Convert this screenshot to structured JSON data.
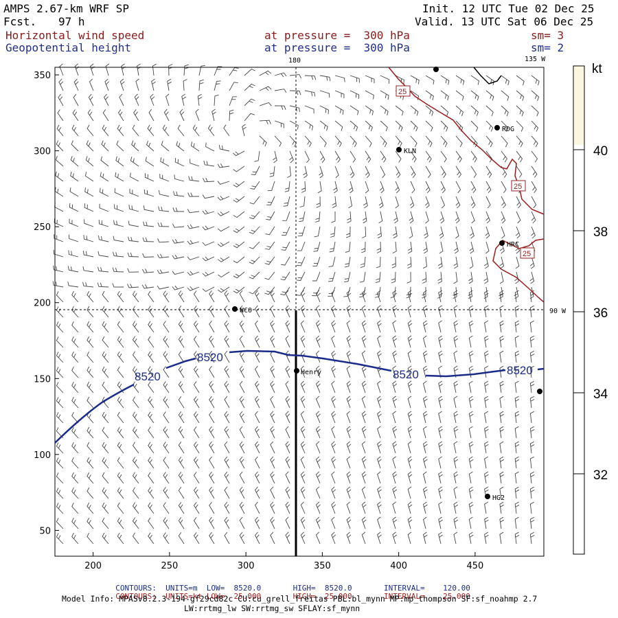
{
  "header": {
    "model": "AMPS 2.67-km WRF SP",
    "fcst_label": "Fcst.",
    "fcst_value": "97 h",
    "init": "Init. 12 UTC Tue 02 Dec 25",
    "valid": "Valid. 13 UTC Sat 06 Dec 25",
    "field1": "Horizontal wind speed",
    "field1_level": "at pressure =  300 hPa",
    "field1_sm": "sm= 3",
    "field2": "Geopotential height",
    "field2_level": "at pressure =  300 hPa",
    "field2_sm": "sm= 2"
  },
  "map": {
    "lon_top": "180",
    "lon_topright": "135 W",
    "lon_right": "90 W",
    "stations": [
      "NCO",
      "Henry",
      "KLN",
      "RDG",
      "HRC",
      "HG2"
    ],
    "road_label": "25",
    "contour_label": "8520"
  },
  "colorbar": {
    "unit": "kt",
    "ticks": [
      "40",
      "38",
      "36",
      "34",
      "32"
    ],
    "fill": "#fbf6e0"
  },
  "chart_data": {
    "type": "map",
    "x_ticks": [
      "200",
      "250",
      "300",
      "350",
      "400",
      "450"
    ],
    "y_ticks": [
      "350",
      "300",
      "250",
      "200",
      "150",
      "100",
      "50"
    ],
    "xlim": [
      175,
      495
    ],
    "ylim": [
      33,
      355
    ],
    "contour_color": "#1a2b8a",
    "coast_color": "#9a1c1c"
  },
  "footer": {
    "line1": {
      "label": "CONTOURS:",
      "units": "UNITS=m",
      "low": "LOW=  8520.0",
      "high": "HIGH=  8520.0",
      "interval": "INTERVAL=    120.00"
    },
    "line2": {
      "label": "CONTOURS:",
      "units": "UNITS=kt",
      "low": "LOW=  25.000",
      "high": "HIGH=  25.000",
      "interval": "INTERVAL=    25.000"
    },
    "model_info": "Model Info: MPASv8.2.3-194-gf29cd82c CU:cu_grell_freitas PBL:bl_mynn MP:mp_thompson SF:sf_noahmp 2.7",
    "model_info2": "LW:rrtmg_lw SW:rrtmg_sw SFLAY:sf_mynn"
  }
}
